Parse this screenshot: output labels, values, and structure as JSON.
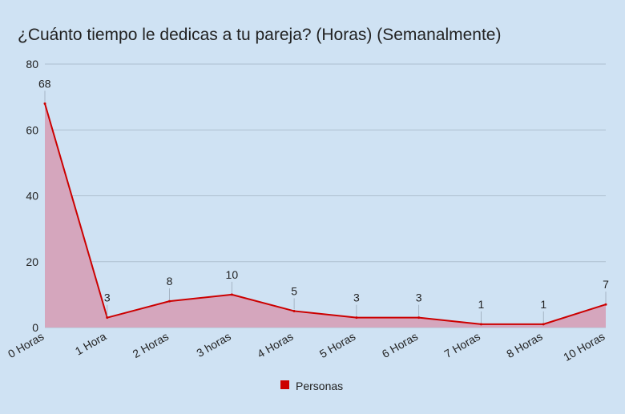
{
  "chart_data": {
    "type": "area",
    "title": "¿Cuánto tiempo le dedicas a tu pareja? (Horas) (Semanalmente)",
    "categories": [
      "0 Horas",
      "1 Hora",
      "2 Horas",
      "3 horas",
      "4 Horas",
      "5 Horas",
      "6 Horas",
      "7 Horas",
      "8 Horas",
      "10 Horas"
    ],
    "series": [
      {
        "name": "Personas",
        "values": [
          68,
          3,
          8,
          10,
          5,
          3,
          3,
          1,
          1,
          7
        ],
        "line_color": "#cc0000",
        "fill_color": "#d5a6bd"
      }
    ],
    "yticks": [
      "0",
      "20",
      "40",
      "60",
      "80"
    ],
    "ylim": [
      0,
      80
    ],
    "grid": true,
    "legend_position": "bottom",
    "data_labels": [
      "68",
      "3",
      "8",
      "10",
      "5",
      "3",
      "3",
      "1",
      "1",
      "7"
    ],
    "background": "#cfe2f3",
    "gridline_color": "#aebfcf"
  }
}
